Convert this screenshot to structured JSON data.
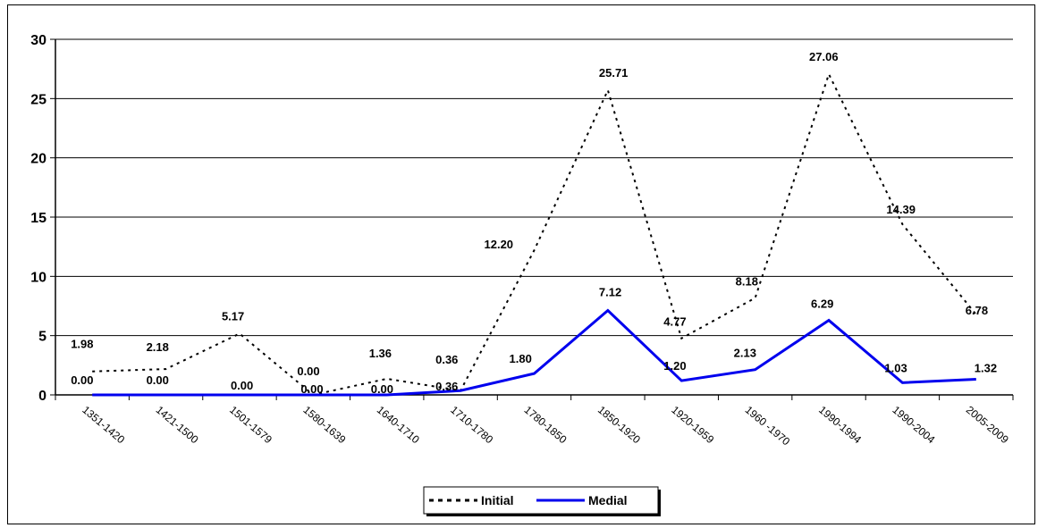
{
  "chart_data": {
    "type": "line",
    "title": "",
    "xlabel": "",
    "ylabel": "",
    "ylim": [
      0,
      30
    ],
    "yticks": [
      0,
      5,
      10,
      15,
      20,
      25,
      30
    ],
    "grid": "horizontal",
    "legend_position": "bottom",
    "categories": [
      "1351-1420",
      "1421-1500",
      "1501-1579",
      "1580-1639",
      "1640-1710",
      "1710-1780",
      "1780-1850",
      "1850-1920",
      "1920-1959",
      "1960 -1970",
      "1990-1994",
      "1990-2004",
      "2005-2009"
    ],
    "series": [
      {
        "name": "Initial",
        "color": "#000000",
        "style": "dotted",
        "values": [
          1.98,
          2.18,
          5.17,
          0.0,
          1.36,
          0.36,
          12.2,
          25.71,
          4.77,
          8.18,
          27.06,
          14.39,
          6.78
        ],
        "labels": [
          "1.98",
          "2.18",
          "5.17",
          "0.00",
          "1.36",
          "0.36",
          "12.20",
          "25.71",
          "4.77",
          "8.18",
          "27.06",
          "14.39",
          "6.78"
        ]
      },
      {
        "name": "Medial",
        "color": "#0000ee",
        "style": "solid",
        "values": [
          0.0,
          0.0,
          0.0,
          0.0,
          0.0,
          0.36,
          1.8,
          7.12,
          1.2,
          2.13,
          6.29,
          1.03,
          1.32
        ],
        "labels": [
          "0.00",
          "0.00",
          "0.00",
          "0.00",
          "0.00",
          "0.36",
          "1.80",
          "7.12",
          "1.20",
          "2.13",
          "6.29",
          "1.03",
          "1.32"
        ]
      }
    ]
  }
}
